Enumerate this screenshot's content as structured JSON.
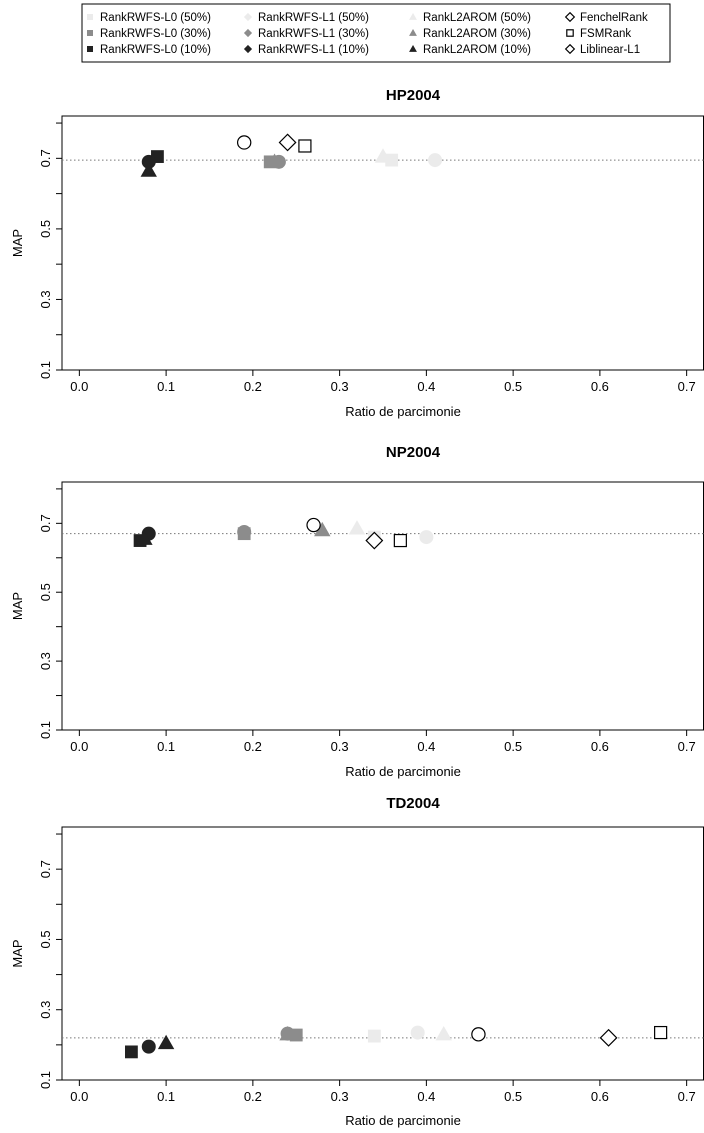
{
  "legend": {
    "entries": [
      {
        "label": "RankRWFS-L0 (50%)",
        "shape": "square",
        "color": "#ebebeb"
      },
      {
        "label": "RankRWFS-L0 (30%)",
        "shape": "square",
        "color": "#8c8c8c"
      },
      {
        "label": "RankRWFS-L0 (10%)",
        "shape": "square",
        "color": "#222222"
      },
      {
        "label": "RankRWFS-L1 (50%)",
        "shape": "diamond",
        "color": "#ebebeb"
      },
      {
        "label": "RankRWFS-L1 (30%)",
        "shape": "diamond",
        "color": "#8c8c8c"
      },
      {
        "label": "RankRWFS-L1 (10%)",
        "shape": "diamond",
        "color": "#222222"
      },
      {
        "label": "RankL2AROM (50%)",
        "shape": "triangle",
        "color": "#ebebeb"
      },
      {
        "label": "RankL2AROM (30%)",
        "shape": "triangle",
        "color": "#8c8c8c"
      },
      {
        "label": "RankL2AROM (10%)",
        "shape": "triangle",
        "color": "#222222"
      },
      {
        "label": "FenchelRank",
        "shape": "diamond-open",
        "color": "#000000"
      },
      {
        "label": "FSMRank",
        "shape": "square-open",
        "color": "#000000"
      },
      {
        "label": "Liblinear-L1",
        "shape": "diamond-open",
        "color": "#000000"
      }
    ]
  },
  "chart_data": [
    {
      "type": "scatter",
      "title": "HP2004",
      "xlabel": "Ratio de parcimonie",
      "ylabel": "MAP",
      "xlim": [
        -0.02,
        0.72
      ],
      "ylim": [
        0.1,
        0.82
      ],
      "xticks": [
        "0.0",
        "0.1",
        "0.2",
        "0.3",
        "0.4",
        "0.5",
        "0.6",
        "0.7"
      ],
      "yticks": [
        "0.1",
        "0.3",
        "0.5",
        "0.7"
      ],
      "reference_line": 0.695,
      "points": [
        {
          "x": 0.36,
          "y": 0.695,
          "shape": "square",
          "color": "#ebebeb"
        },
        {
          "x": 0.41,
          "y": 0.695,
          "shape": "circle",
          "color": "#ebebeb"
        },
        {
          "x": 0.35,
          "y": 0.705,
          "shape": "triangle",
          "color": "#ebebeb"
        },
        {
          "x": 0.22,
          "y": 0.69,
          "shape": "square",
          "color": "#8c8c8c"
        },
        {
          "x": 0.23,
          "y": 0.69,
          "shape": "circle",
          "color": "#8c8c8c"
        },
        {
          "x": 0.225,
          "y": 0.69,
          "shape": "triangle",
          "color": "#8c8c8c"
        },
        {
          "x": 0.09,
          "y": 0.705,
          "shape": "square",
          "color": "#222222"
        },
        {
          "x": 0.08,
          "y": 0.69,
          "shape": "circle",
          "color": "#222222"
        },
        {
          "x": 0.08,
          "y": 0.665,
          "shape": "triangle",
          "color": "#222222"
        },
        {
          "x": 0.19,
          "y": 0.745,
          "shape": "circle-open",
          "color": "#000000"
        },
        {
          "x": 0.24,
          "y": 0.745,
          "shape": "diamond-open",
          "color": "#000000"
        },
        {
          "x": 0.26,
          "y": 0.735,
          "shape": "square-open",
          "color": "#000000"
        }
      ]
    },
    {
      "type": "scatter",
      "title": "NP2004",
      "xlabel": "Ratio de parcimonie",
      "ylabel": "MAP",
      "xlim": [
        -0.02,
        0.72
      ],
      "ylim": [
        0.1,
        0.82
      ],
      "xticks": [
        "0.0",
        "0.1",
        "0.2",
        "0.3",
        "0.4",
        "0.5",
        "0.6",
        "0.7"
      ],
      "yticks": [
        "0.1",
        "0.3",
        "0.5",
        "0.7"
      ],
      "reference_line": 0.67,
      "points": [
        {
          "x": 0.34,
          "y": 0.66,
          "shape": "square",
          "color": "#ebebeb"
        },
        {
          "x": 0.4,
          "y": 0.66,
          "shape": "circle",
          "color": "#ebebeb"
        },
        {
          "x": 0.32,
          "y": 0.685,
          "shape": "triangle",
          "color": "#ebebeb"
        },
        {
          "x": 0.19,
          "y": 0.67,
          "shape": "square",
          "color": "#8c8c8c"
        },
        {
          "x": 0.19,
          "y": 0.675,
          "shape": "circle",
          "color": "#8c8c8c"
        },
        {
          "x": 0.28,
          "y": 0.68,
          "shape": "triangle",
          "color": "#8c8c8c"
        },
        {
          "x": 0.07,
          "y": 0.65,
          "shape": "square",
          "color": "#222222"
        },
        {
          "x": 0.08,
          "y": 0.67,
          "shape": "circle",
          "color": "#222222"
        },
        {
          "x": 0.075,
          "y": 0.655,
          "shape": "triangle",
          "color": "#222222"
        },
        {
          "x": 0.27,
          "y": 0.695,
          "shape": "circle-open",
          "color": "#000000"
        },
        {
          "x": 0.34,
          "y": 0.65,
          "shape": "diamond-open",
          "color": "#000000"
        },
        {
          "x": 0.37,
          "y": 0.65,
          "shape": "square-open",
          "color": "#000000"
        }
      ]
    },
    {
      "type": "scatter",
      "title": "TD2004",
      "xlabel": "Ratio de parcimonie",
      "ylabel": "MAP",
      "xlim": [
        -0.02,
        0.72
      ],
      "ylim": [
        0.1,
        0.82
      ],
      "xticks": [
        "0.0",
        "0.1",
        "0.2",
        "0.3",
        "0.4",
        "0.5",
        "0.6",
        "0.7"
      ],
      "yticks": [
        "0.1",
        "0.3",
        "0.5",
        "0.7"
      ],
      "reference_line": 0.22,
      "points": [
        {
          "x": 0.34,
          "y": 0.225,
          "shape": "square",
          "color": "#ebebeb"
        },
        {
          "x": 0.39,
          "y": 0.235,
          "shape": "circle",
          "color": "#ebebeb"
        },
        {
          "x": 0.42,
          "y": 0.23,
          "shape": "triangle",
          "color": "#ebebeb"
        },
        {
          "x": 0.25,
          "y": 0.228,
          "shape": "square",
          "color": "#8c8c8c"
        },
        {
          "x": 0.24,
          "y": 0.232,
          "shape": "circle",
          "color": "#8c8c8c"
        },
        {
          "x": 0.24,
          "y": 0.23,
          "shape": "triangle",
          "color": "#8c8c8c"
        },
        {
          "x": 0.06,
          "y": 0.18,
          "shape": "square",
          "color": "#222222"
        },
        {
          "x": 0.08,
          "y": 0.195,
          "shape": "circle",
          "color": "#222222"
        },
        {
          "x": 0.1,
          "y": 0.205,
          "shape": "triangle",
          "color": "#222222"
        },
        {
          "x": 0.46,
          "y": 0.23,
          "shape": "circle-open",
          "color": "#000000"
        },
        {
          "x": 0.61,
          "y": 0.22,
          "shape": "diamond-open",
          "color": "#000000"
        },
        {
          "x": 0.67,
          "y": 0.235,
          "shape": "square-open",
          "color": "#000000"
        }
      ]
    }
  ]
}
